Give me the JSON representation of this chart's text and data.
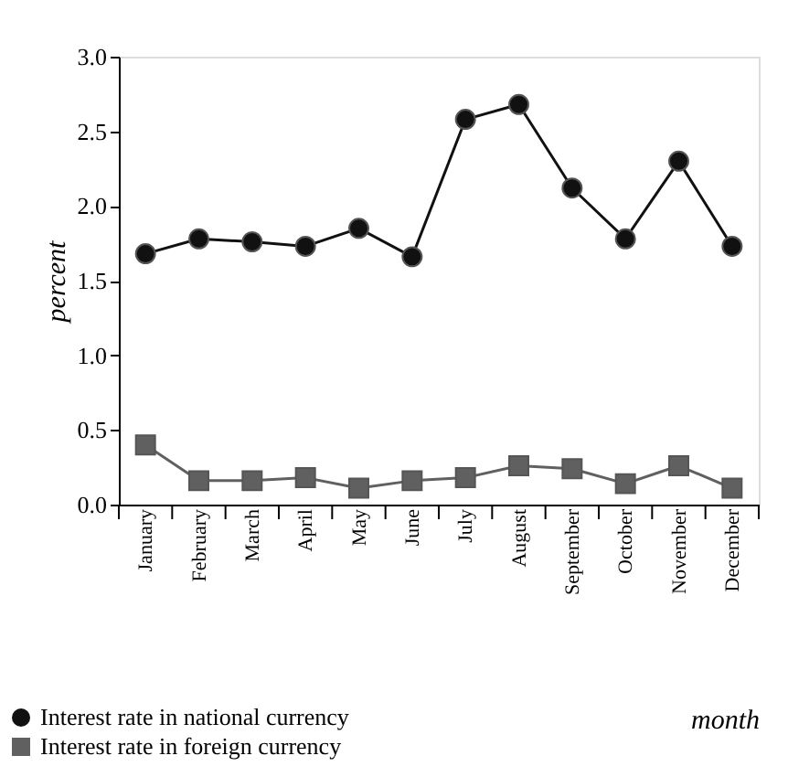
{
  "chart_data": {
    "type": "line",
    "xlabel": "month",
    "ylabel": "percent",
    "categories": [
      "January",
      "February",
      "March",
      "April",
      "May",
      "June",
      "July",
      "August",
      "September",
      "October",
      "November",
      "December"
    ],
    "series": [
      {
        "name": "Interest rate in national currency",
        "color": "#111111",
        "marker": "circle",
        "values": [
          1.68,
          1.78,
          1.76,
          1.73,
          1.85,
          1.66,
          2.58,
          2.68,
          2.12,
          1.78,
          2.3,
          1.73
        ]
      },
      {
        "name": "Interest rate in foreign currency",
        "color": "#606060",
        "marker": "square",
        "values": [
          0.4,
          0.16,
          0.16,
          0.18,
          0.11,
          0.16,
          0.18,
          0.26,
          0.24,
          0.14,
          0.26,
          0.11
        ]
      }
    ],
    "ylim": [
      0,
      3
    ],
    "yticks": [
      {
        "value": 0,
        "label": "0.0"
      },
      0.5,
      {
        "value": 1,
        "label": "1.0"
      },
      1.5,
      {
        "value": 2,
        "label": "2.0"
      },
      2.5,
      {
        "value": 3,
        "label": "3.0"
      }
    ],
    "grid": false,
    "legend": "bottom left",
    "line_style": "solid"
  }
}
